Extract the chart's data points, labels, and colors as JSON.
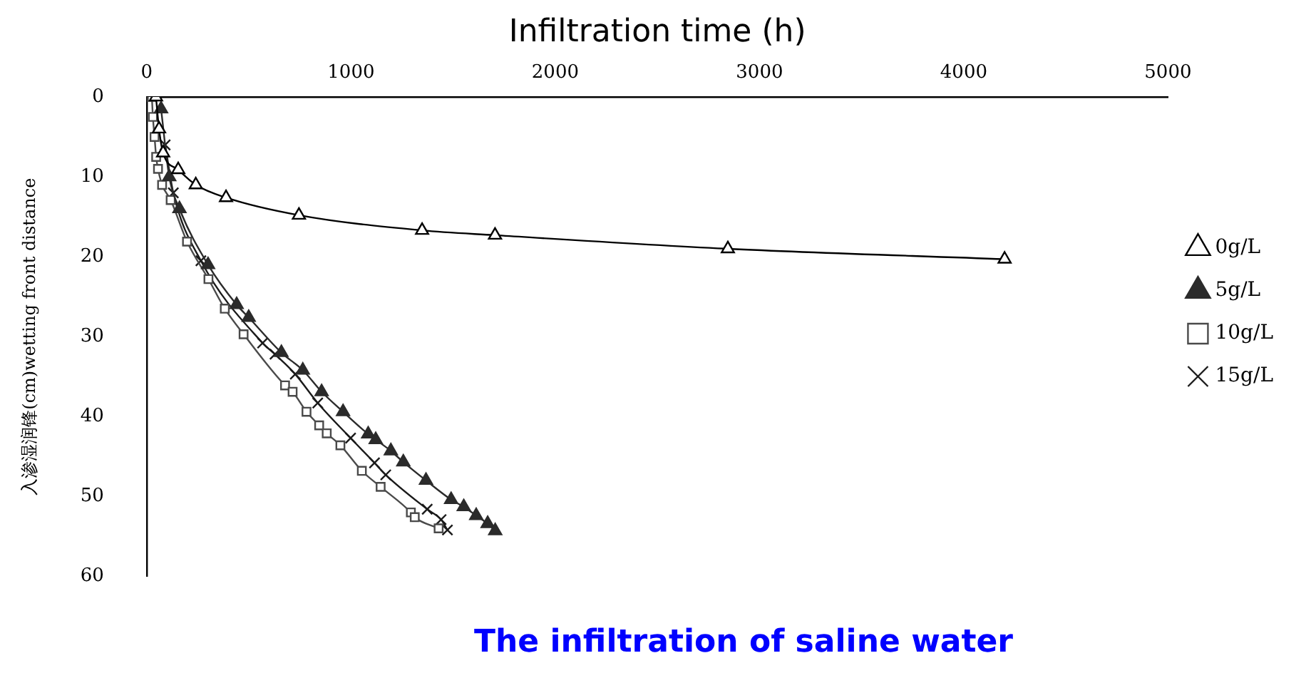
{
  "chart_data": {
    "type": "line",
    "xlabel": "Infiltration time (h)",
    "ylabel": "入渗湿润锋(cm)wetting front distance",
    "annotations": [
      "The infiltration of saline water"
    ],
    "xlim": [
      0,
      5000
    ],
    "xticks": [
      0,
      1000,
      2000,
      3000,
      4000,
      5000
    ],
    "ylim": [
      60,
      0
    ],
    "yticks": [
      0,
      10,
      20,
      30,
      40,
      50,
      60
    ],
    "grid": false,
    "legend": "right",
    "line_style": "solid",
    "series": [
      {
        "name": "0g/L",
        "color": "#000000",
        "marker": "triangle",
        "x": [
          45,
          60,
          80,
          154,
          240,
          388,
          745,
          1348,
          1705,
          2845,
          4200
        ],
        "values": [
          0,
          4,
          7,
          9.1,
          11.0,
          12.6,
          14.8,
          16.7,
          17.3,
          19.0,
          20.3
        ]
      },
      {
        "name": "5g/L",
        "color": "#2b2b2b",
        "marker": "triangle",
        "x": [
          70,
          110,
          160,
          300,
          440,
          499,
          659,
          764,
          856,
          961,
          1084,
          1121,
          1195,
          1256,
          1367,
          1490,
          1552,
          1613,
          1669,
          1706
        ],
        "values": [
          1.5,
          10,
          14,
          21,
          26,
          27.6,
          32.0,
          34.2,
          36.9,
          39.4,
          42.2,
          42.9,
          44.3,
          45.7,
          48.0,
          50.4,
          51.3,
          52.4,
          53.4,
          54.3
        ]
      },
      {
        "name": "10g/L",
        "color": "#4a4a4a",
        "marker": "square",
        "x": [
          25,
          30,
          38,
          46,
          55,
          75,
          117,
          197,
          302,
          382,
          474,
          677,
          714,
          782,
          844,
          881,
          948,
          1053,
          1145,
          1293,
          1312,
          1429
        ],
        "values": [
          0,
          2.5,
          5,
          7.5,
          9,
          11,
          12.9,
          18.1,
          22.8,
          26.5,
          29.7,
          36.1,
          36.9,
          39.4,
          41.1,
          42.1,
          43.6,
          46.8,
          48.8,
          52.0,
          52.6,
          54.0
        ]
      },
      {
        "name": "15g/L",
        "color": "#1a1a1a",
        "marker": "cross",
        "x": [
          90,
          130,
          265,
          567,
          628,
          727,
          837,
          998,
          1115,
          1170,
          1373,
          1441,
          1472
        ],
        "values": [
          6,
          12,
          20.5,
          30.8,
          32.2,
          34.7,
          38.3,
          42.7,
          45.8,
          47.3,
          51.6,
          52.9,
          54.2
        ]
      }
    ]
  }
}
